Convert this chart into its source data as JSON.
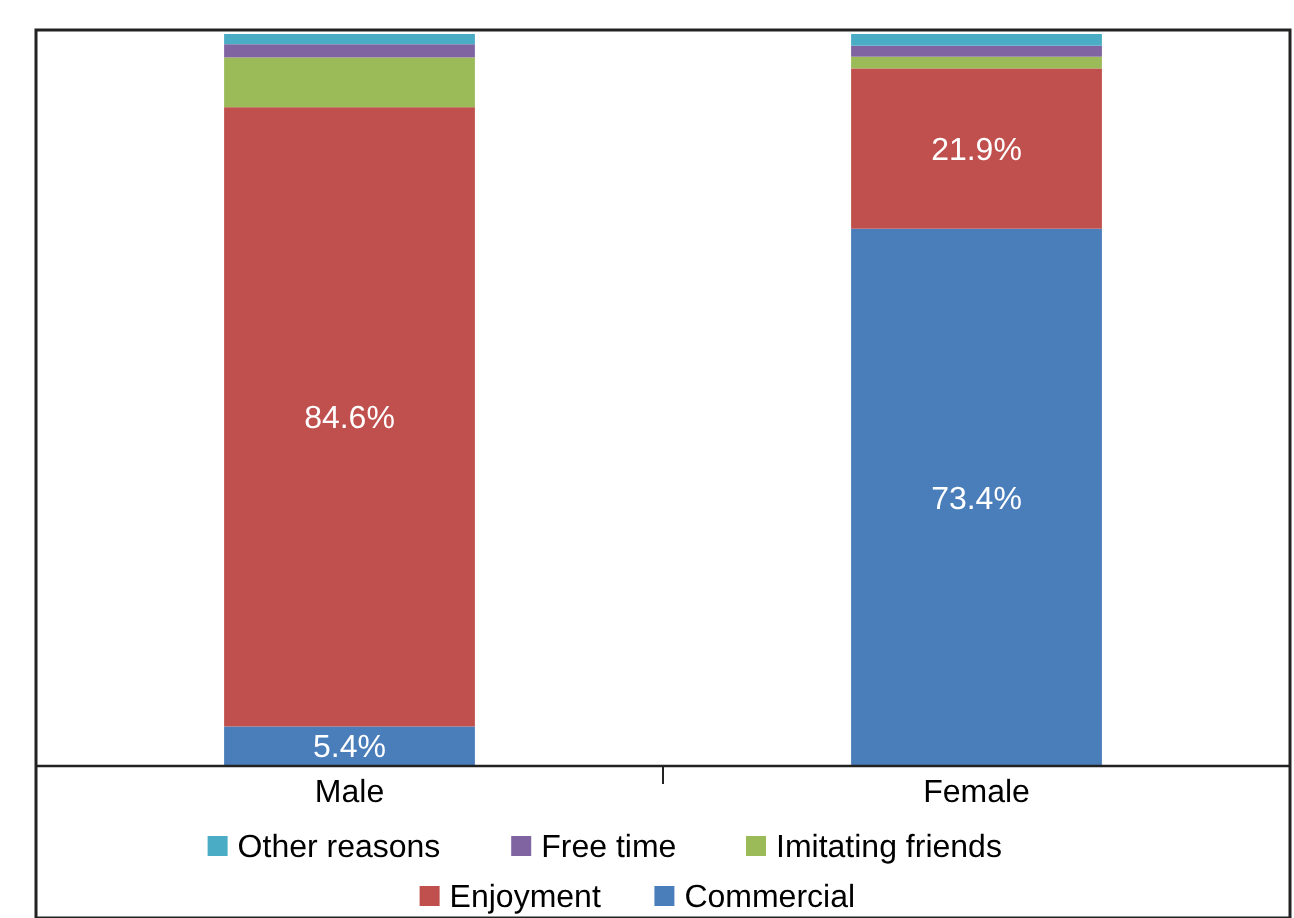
{
  "chart_data": {
    "type": "bar",
    "stacked": true,
    "categories": [
      "Male",
      "Female"
    ],
    "ylim": [
      0,
      100
    ],
    "tick_labels": "x",
    "legend": "bottom",
    "series": [
      {
        "name": "Commercial",
        "color": "#4a7ebb",
        "values": [
          5.4,
          73.4
        ],
        "value_labels": [
          "5.4%",
          "73.4%"
        ]
      },
      {
        "name": "Enjoyment",
        "color": "#c0504d",
        "values": [
          84.6,
          21.9
        ],
        "value_labels": [
          "84.6%",
          "21.9%"
        ]
      },
      {
        "name": "Imitating friends",
        "color": "#9bbb59",
        "values": [
          6.8,
          1.6
        ],
        "value_labels": [
          null,
          null
        ]
      },
      {
        "name": "Free time",
        "color": "#8064a2",
        "values": [
          1.8,
          1.5
        ],
        "value_labels": [
          null,
          null
        ]
      },
      {
        "name": "Other reasons",
        "color": "#4bacc6",
        "values": [
          1.4,
          1.6
        ],
        "value_labels": [
          null,
          null
        ]
      }
    ]
  }
}
